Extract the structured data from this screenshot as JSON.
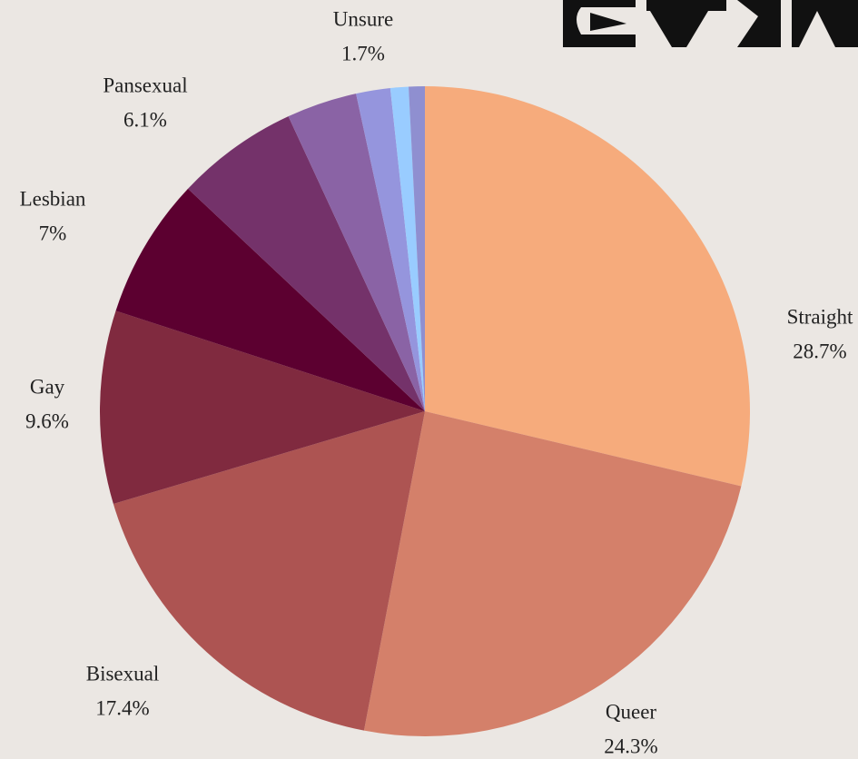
{
  "chart_data": {
    "type": "pie",
    "categories": [
      "Straight",
      "Queer",
      "Bisexual",
      "Gay",
      "Lesbian",
      "Pansexual",
      null,
      "Unsure",
      null,
      null
    ],
    "values": [
      28.7,
      24.3,
      17.4,
      9.6,
      7,
      6.1,
      3.5,
      1.7,
      0.9,
      0.8
    ],
    "value_labels": [
      "28.7%",
      "24.3%",
      "17.4%",
      "9.6%",
      "7%",
      "6.1%",
      null,
      "1.7%",
      null,
      null
    ],
    "colors": [
      "#f6ab7c",
      "#d4806a",
      "#ad5452",
      "#802a3f",
      "#5c0030",
      "#74326a",
      "#8a63a5",
      "#9595dd",
      "#99ccff",
      "#8f8fd0"
    ]
  }
}
